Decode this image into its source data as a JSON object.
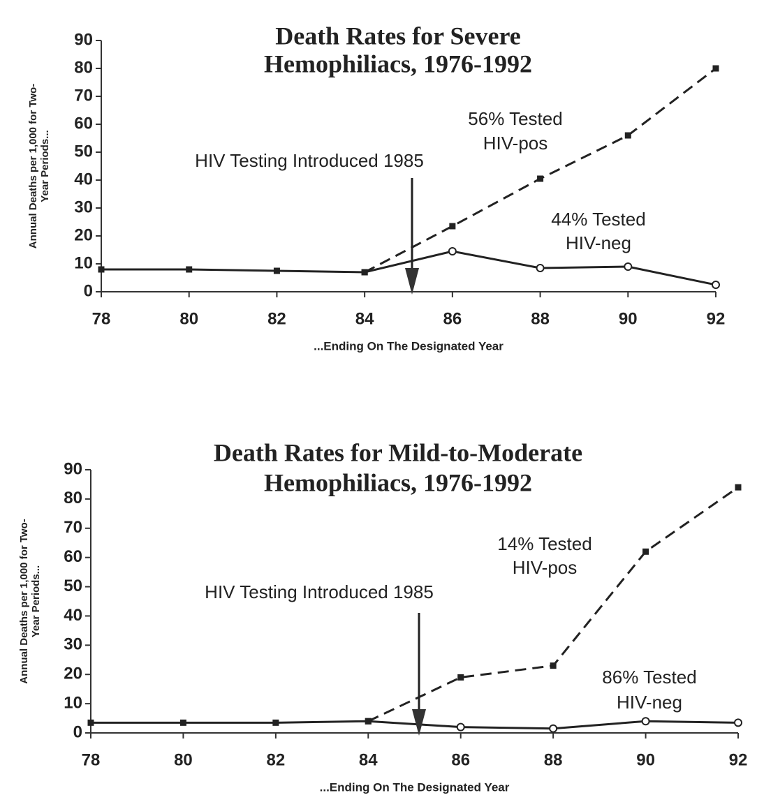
{
  "chart_data": [
    {
      "type": "line",
      "title": [
        "Death Rates for Severe",
        "Hemophiliacs, 1976-1992"
      ],
      "ylabel": [
        "Annual Deaths per 1,000 for Two-",
        "Year Periods..."
      ],
      "xlabel": "...Ending On The Designated Year",
      "x": [
        78,
        80,
        82,
        84,
        86,
        88,
        90,
        92
      ],
      "xlim": [
        78,
        92
      ],
      "xticks": [
        78,
        80,
        82,
        84,
        86,
        88,
        90,
        92
      ],
      "ylim": [
        0,
        90
      ],
      "yticks": [
        0,
        10,
        20,
        30,
        40,
        50,
        60,
        70,
        80,
        90
      ],
      "series": [
        {
          "color": "#222",
          "style": "dashed",
          "values": [
            null,
            null,
            null,
            7,
            23.5,
            40.5,
            56,
            80
          ]
        },
        {
          "color": "#222",
          "style": "solid",
          "values": [
            8,
            8,
            7.5,
            7,
            14.5,
            8.5,
            9,
            2.5
          ],
          "markers": [
            "square",
            "square",
            "square",
            "square",
            "circle",
            "circle",
            "circle",
            "circle"
          ]
        }
      ],
      "annotations": [
        "HIV Testing Introduced 1985",
        "56% Tested",
        "HIV-pos",
        "44% Tested",
        "HIV-neg"
      ]
    },
    {
      "type": "line",
      "title": [
        "Death Rates for Mild-to-Moderate",
        "Hemophiliacs, 1976-1992"
      ],
      "ylabel": [
        "Annual Deaths per 1,000 for Two-",
        "Year Periods..."
      ],
      "xlabel": "...Ending On The Designated Year",
      "x": [
        78,
        80,
        82,
        84,
        86,
        88,
        90,
        92
      ],
      "xlim": [
        78,
        92
      ],
      "xticks": [
        78,
        80,
        82,
        84,
        86,
        88,
        90,
        92
      ],
      "ylim": [
        0,
        90
      ],
      "yticks": [
        0,
        10,
        20,
        30,
        40,
        50,
        60,
        70,
        80,
        90
      ],
      "series": [
        {
          "color": "#222",
          "style": "dashed",
          "values": [
            null,
            null,
            null,
            4,
            19,
            23,
            62,
            84
          ]
        },
        {
          "color": "#222",
          "style": "solid",
          "values": [
            3.5,
            3.5,
            3.5,
            4,
            2,
            1.5,
            4,
            3.5
          ],
          "markers": [
            "square",
            "square",
            "square",
            "square",
            "circle",
            "circle",
            "circle",
            "circle"
          ]
        }
      ],
      "annotations": [
        "HIV Testing Introduced 1985",
        "14% Tested",
        "HIV-pos",
        "86% Tested",
        "HIV-neg"
      ]
    }
  ]
}
